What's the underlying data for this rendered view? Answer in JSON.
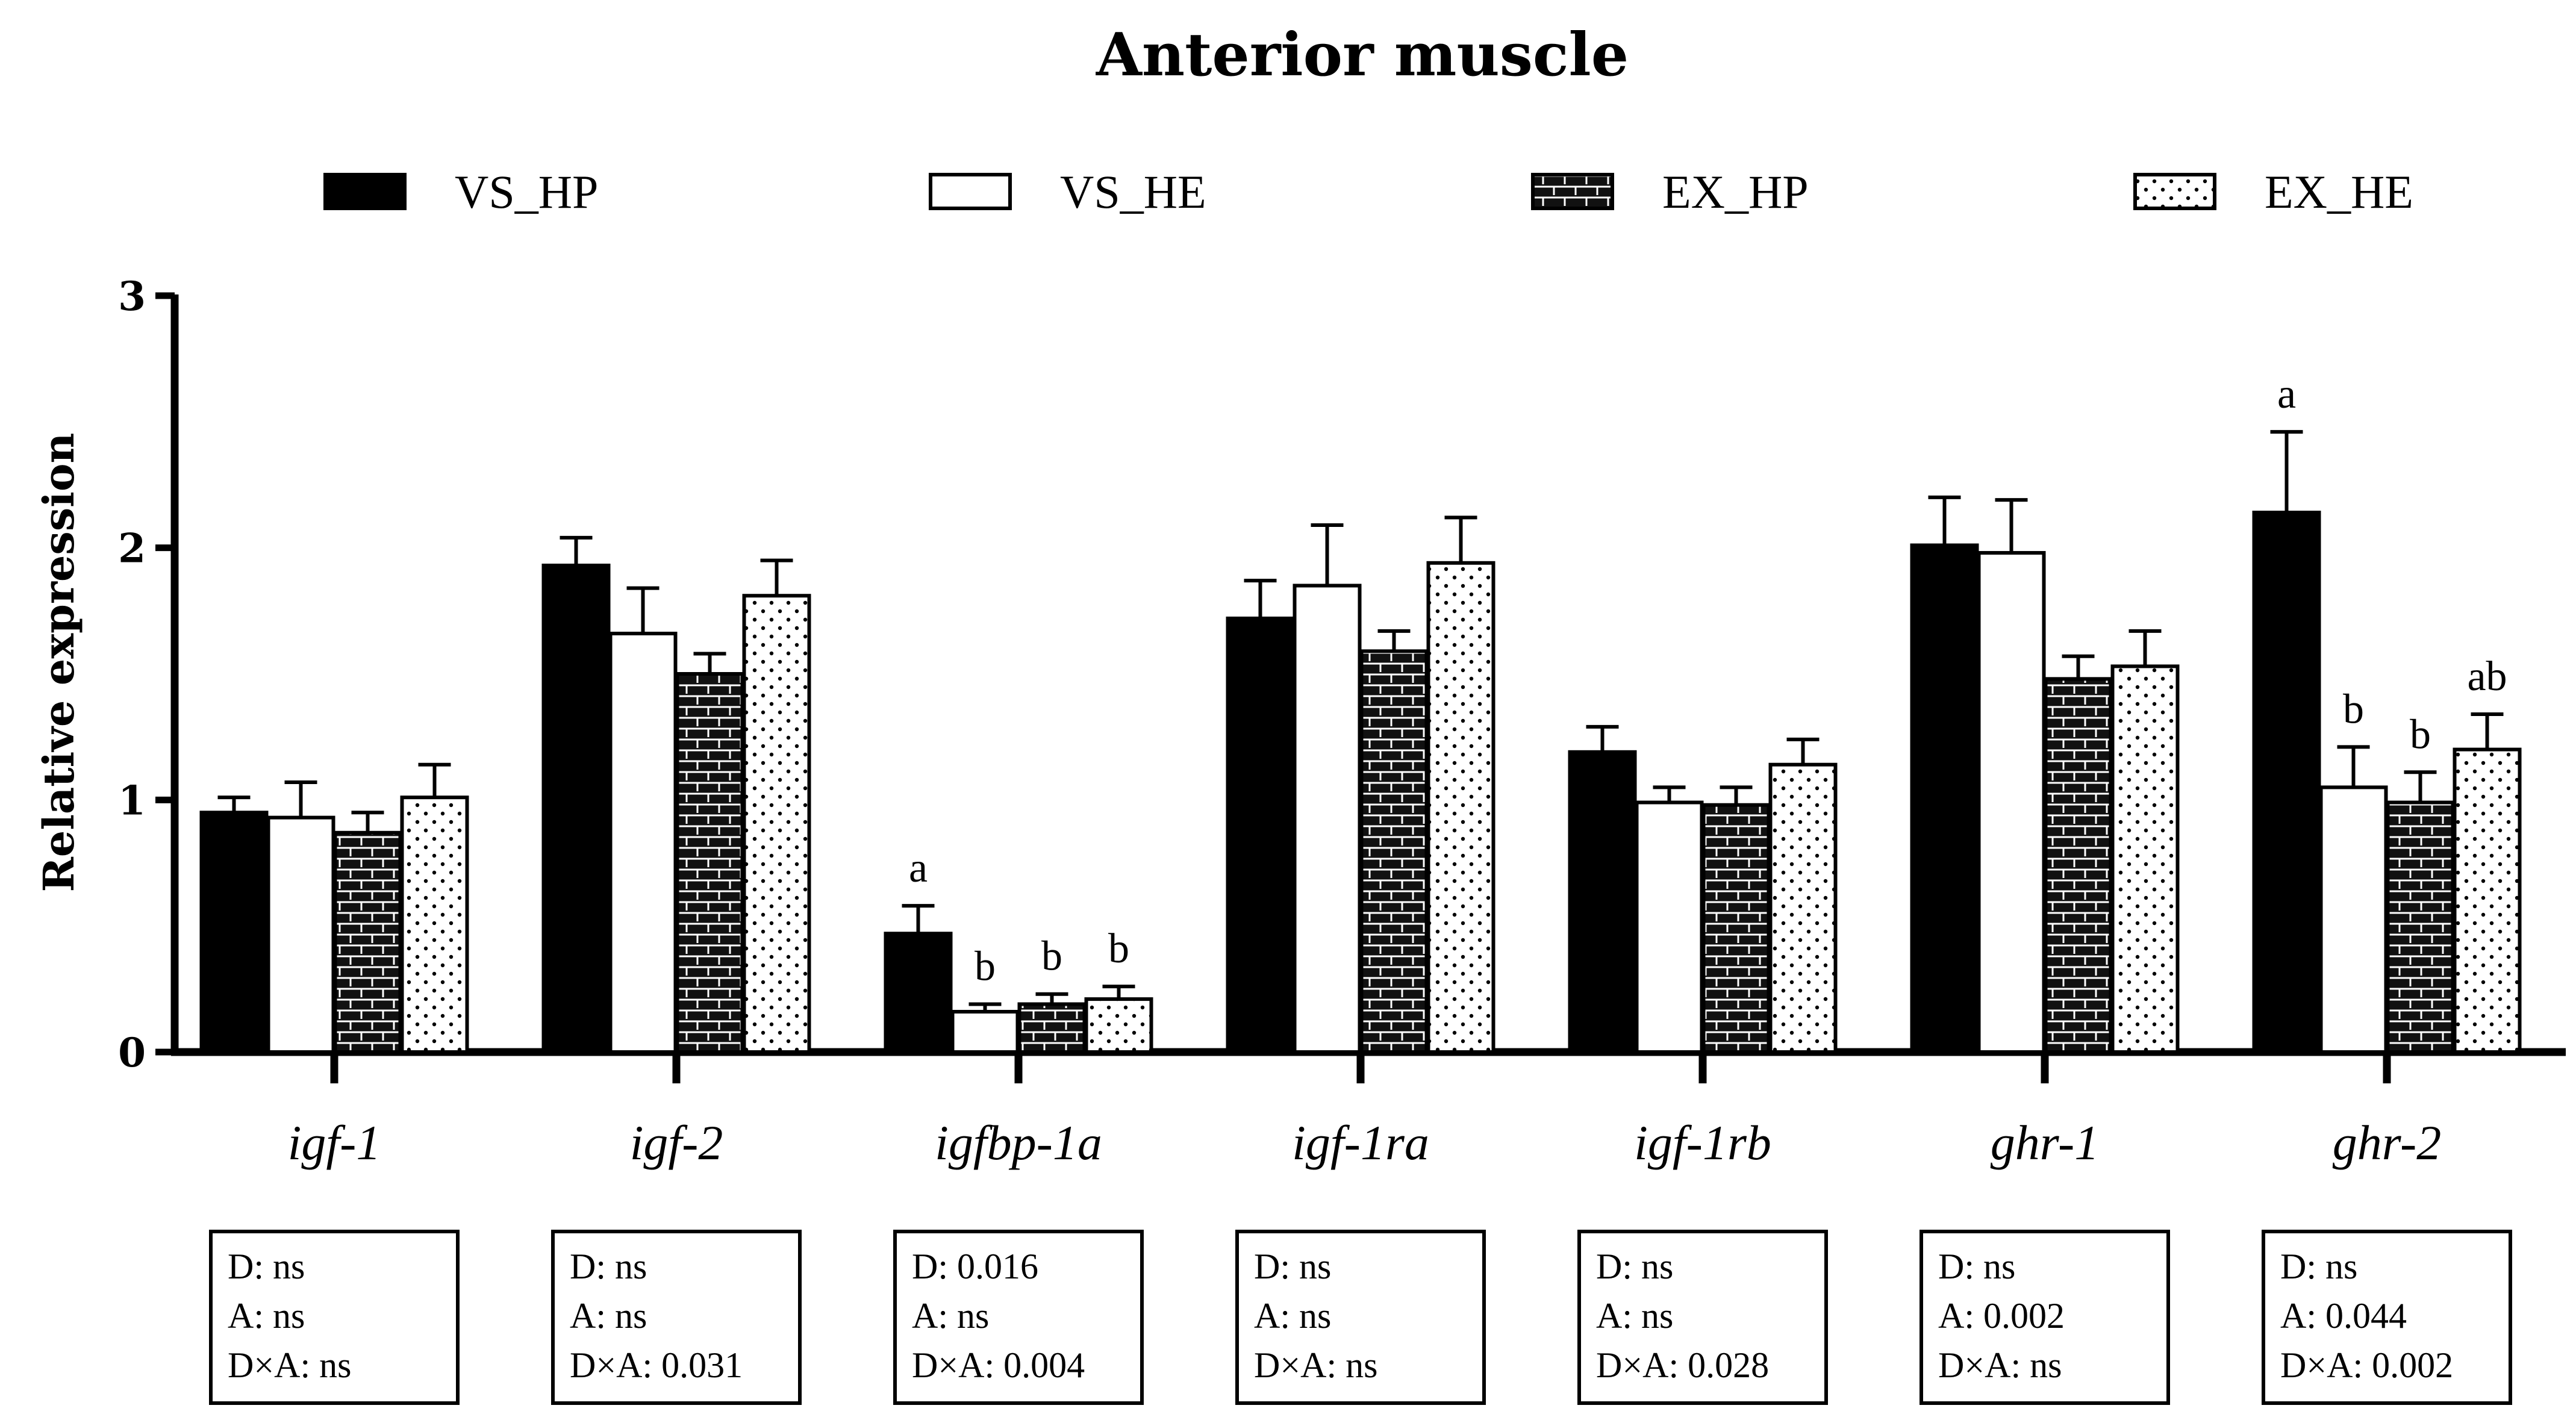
{
  "chart_data": {
    "type": "bar",
    "title": "Anterior muscle",
    "ylabel": "Relative expression",
    "xlabel": "",
    "ylim": [
      0,
      3
    ],
    "yticks": [
      0,
      1,
      2,
      3
    ],
    "legend_position": "top",
    "categories": [
      "igf-1",
      "igf-2",
      "igfbp-1a",
      "igf-1ra",
      "igf-1rb",
      "ghr-1",
      "ghr-2"
    ],
    "series": [
      {
        "name": "VS_HP",
        "pattern": "solid-black",
        "values": [
          0.95,
          1.93,
          0.47,
          1.72,
          1.19,
          2.01,
          2.14
        ],
        "errors": [
          0.06,
          0.11,
          0.11,
          0.15,
          0.1,
          0.19,
          0.32
        ],
        "letters": [
          "",
          "",
          "a",
          "",
          "",
          "",
          "a"
        ]
      },
      {
        "name": "VS_HE",
        "pattern": "white",
        "values": [
          0.93,
          1.66,
          0.16,
          1.85,
          0.99,
          1.98,
          1.05
        ],
        "errors": [
          0.14,
          0.18,
          0.03,
          0.24,
          0.06,
          0.21,
          0.16
        ],
        "letters": [
          "",
          "",
          "b",
          "",
          "",
          "",
          "b"
        ]
      },
      {
        "name": "EX_HP",
        "pattern": "black-brick",
        "values": [
          0.87,
          1.5,
          0.19,
          1.59,
          0.98,
          1.48,
          0.99
        ],
        "errors": [
          0.08,
          0.08,
          0.04,
          0.08,
          0.07,
          0.09,
          0.12
        ],
        "letters": [
          "",
          "",
          "b",
          "",
          "",
          "",
          "b"
        ]
      },
      {
        "name": "EX_HE",
        "pattern": "white-dotted",
        "values": [
          1.01,
          1.81,
          0.21,
          1.94,
          1.14,
          1.53,
          1.2
        ],
        "errors": [
          0.13,
          0.14,
          0.05,
          0.18,
          0.1,
          0.14,
          0.14
        ],
        "letters": [
          "",
          "",
          "b",
          "",
          "",
          "",
          "ab"
        ]
      }
    ],
    "stats_boxes": [
      {
        "d": "D: ns",
        "a": "A: ns",
        "dxa": "D×A: ns"
      },
      {
        "d": "D: ns",
        "a": "A: ns",
        "dxa": "D×A: 0.031"
      },
      {
        "d": "D: 0.016",
        "a": "A: ns",
        "dxa": "D×A: 0.004"
      },
      {
        "d": "D: ns",
        "a": "A: ns",
        "dxa": "D×A: ns"
      },
      {
        "d": "D: ns",
        "a": "A: ns",
        "dxa": "D×A: 0.028"
      },
      {
        "d": "D: ns",
        "a": "A: 0.002",
        "dxa": "D×A: ns"
      },
      {
        "d": "D: ns",
        "a": "A: 0.044",
        "dxa": "D×A: 0.002"
      }
    ]
  }
}
